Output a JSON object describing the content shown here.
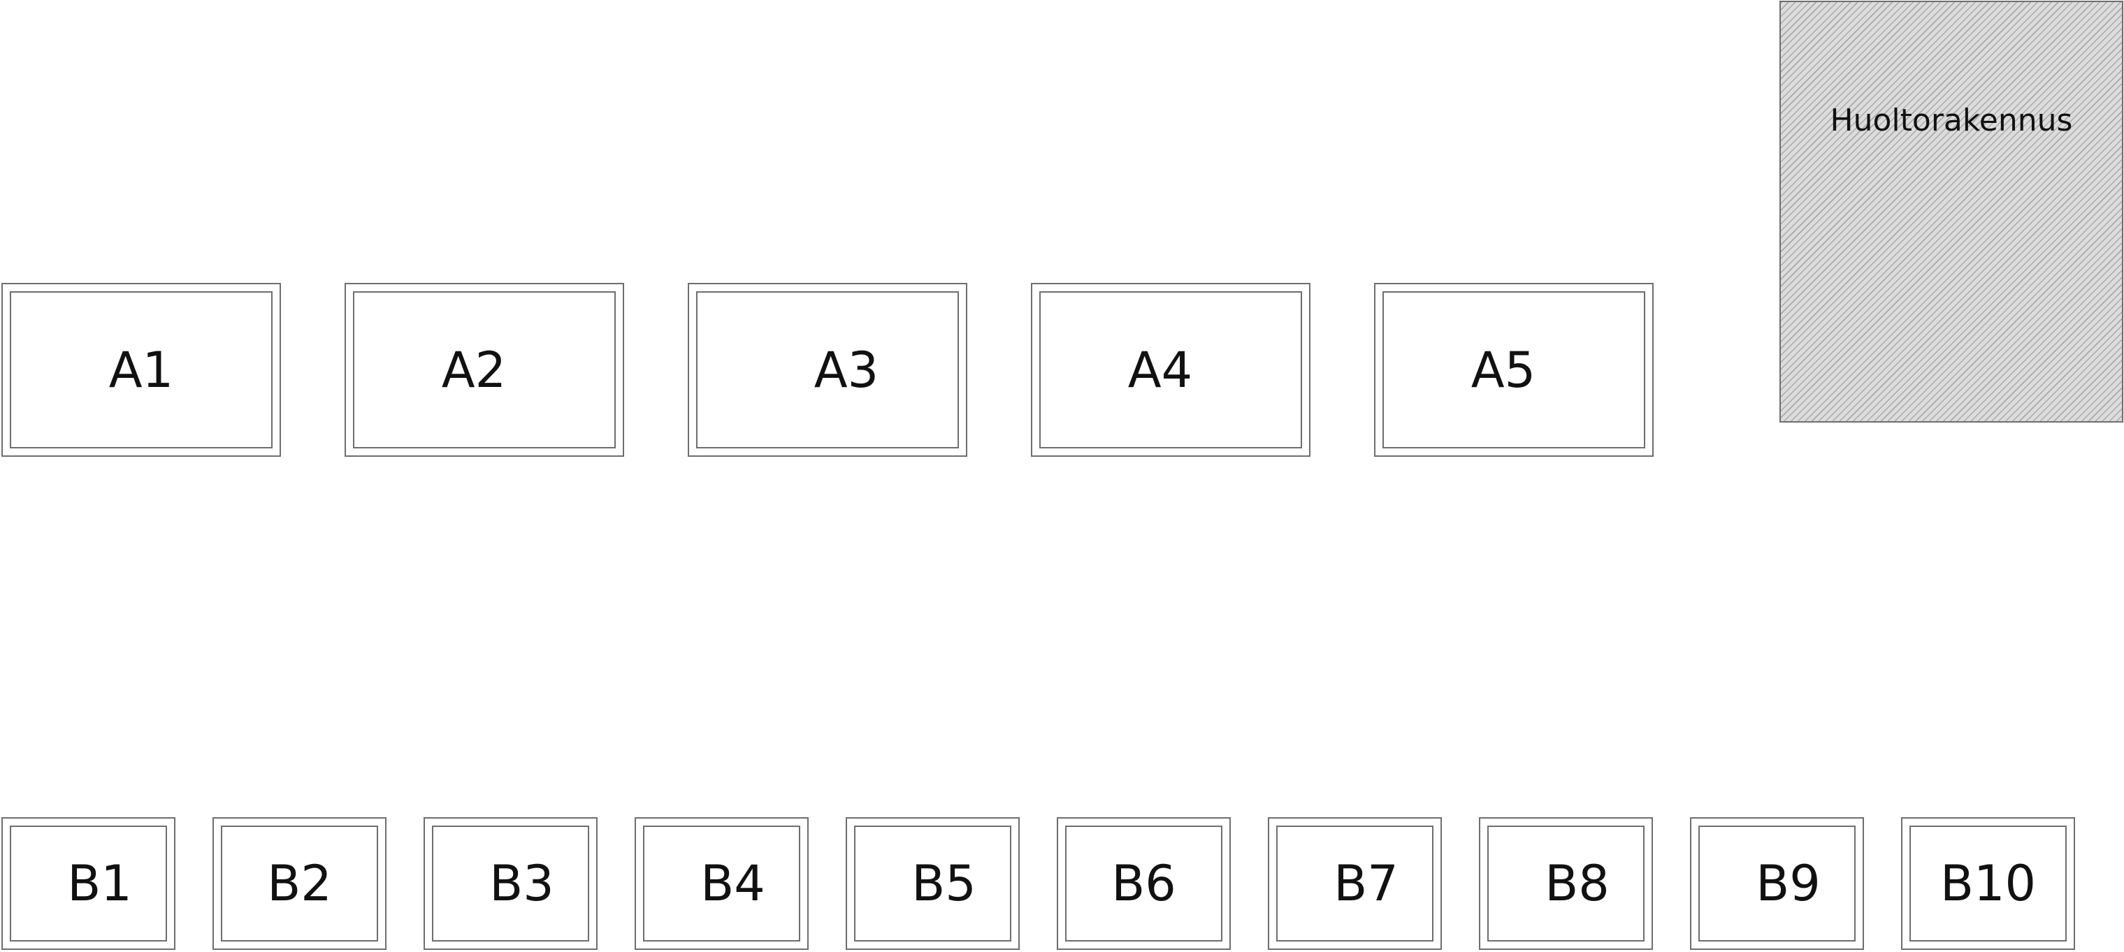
{
  "row_a": [
    {
      "id": "a1",
      "label": "A1"
    },
    {
      "id": "a2",
      "label": "A2"
    },
    {
      "id": "a3",
      "label": "A3"
    },
    {
      "id": "a4",
      "label": "A4"
    },
    {
      "id": "a5",
      "label": "A5"
    }
  ],
  "row_b": [
    {
      "id": "b1",
      "label": "B1"
    },
    {
      "id": "b2",
      "label": "B2"
    },
    {
      "id": "b3",
      "label": "B3"
    },
    {
      "id": "b4",
      "label": "B4"
    },
    {
      "id": "b5",
      "label": "B5"
    },
    {
      "id": "b6",
      "label": "B6"
    },
    {
      "id": "b7",
      "label": "B7"
    },
    {
      "id": "b8",
      "label": "B8"
    },
    {
      "id": "b9",
      "label": "B9"
    },
    {
      "id": "b10",
      "label": "B10"
    }
  ],
  "service_building": {
    "label": "Huoltorakennus"
  },
  "colors": {
    "outline": "#6e6e6e",
    "hatch_fill": "#dcdcdc",
    "hatch_line": "#a9a9a9",
    "text": "#111111"
  }
}
